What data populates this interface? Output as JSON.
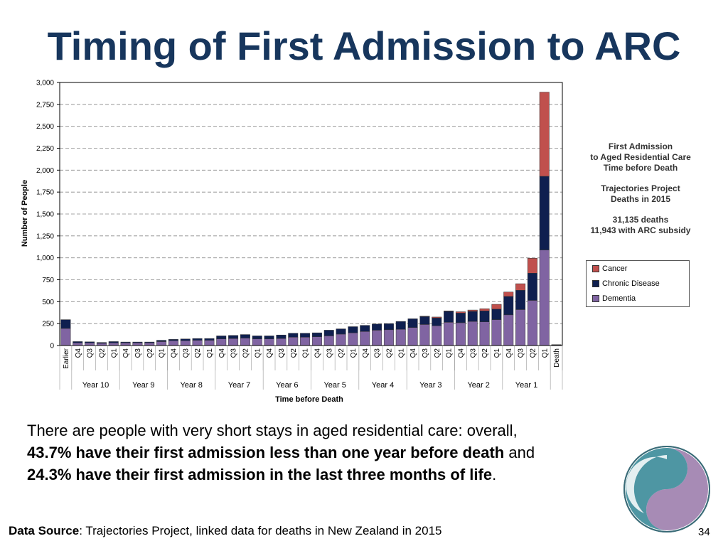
{
  "title": "Timing of First Admission to ARC",
  "info_panel": {
    "lines1": [
      "First Admission",
      "to Aged Residential Care",
      "Time before Death"
    ],
    "lines2": [
      "Trajectories Project",
      "Deaths in 2015"
    ],
    "lines3": [
      "31,135 deaths",
      "11,943 with ARC  subsidy"
    ]
  },
  "legend": [
    {
      "label": "Cancer",
      "color": "#c0504d"
    },
    {
      "label": "Chronic Disease",
      "color": "#0f1f4f"
    },
    {
      "label": "Dementia",
      "color": "#8064a2"
    }
  ],
  "body": {
    "line1": "There are people with very short stays in aged residential care: overall,",
    "line2_bold": "43.7% have their first admission less than one year before death",
    "line2_rest": " and",
    "line3_bold": "24.3% have their first admission in the last three months of life",
    "line3_rest": "."
  },
  "source_label": "Data Source",
  "source_text": ": Trajectories Project, linked data for deaths in New Zealand in 2015",
  "page_number": "34",
  "chart_data": {
    "type": "bar",
    "stacked": true,
    "ylabel": "Number of People",
    "xlabel": "Time before Death",
    "ylim": [
      0,
      3000
    ],
    "yticks": [
      "0",
      "250",
      "500",
      "750",
      "1,000",
      "1,250",
      "1,500",
      "1,750",
      "2,000",
      "2,250",
      "2,500",
      "2,750",
      "3,000"
    ],
    "ytick_values": [
      0,
      250,
      500,
      750,
      1000,
      1250,
      1500,
      1750,
      2000,
      2250,
      2500,
      2750,
      3000
    ],
    "grid": "horizontal dashed",
    "categories": [
      "Earlier",
      "Q4",
      "Q3",
      "Q2",
      "Q1",
      "Q4",
      "Q3",
      "Q2",
      "Q1",
      "Q4",
      "Q3",
      "Q2",
      "Q1",
      "Q4",
      "Q3",
      "Q2",
      "Q1",
      "Q4",
      "Q3",
      "Q2",
      "Q1",
      "Q4",
      "Q3",
      "Q2",
      "Q1",
      "Q4",
      "Q3",
      "Q2",
      "Q1",
      "Q4",
      "Q3",
      "Q2",
      "Q1",
      "Q4",
      "Q3",
      "Q2",
      "Q1",
      "Q4",
      "Q3",
      "Q2",
      "Q1",
      "Death"
    ],
    "groups": [
      {
        "label": "Year 10",
        "start": 1,
        "end": 4
      },
      {
        "label": "Year 9",
        "start": 5,
        "end": 8
      },
      {
        "label": "Year 8",
        "start": 9,
        "end": 12
      },
      {
        "label": "Year 7",
        "start": 13,
        "end": 16
      },
      {
        "label": "Year 6",
        "start": 17,
        "end": 20
      },
      {
        "label": "Year 5",
        "start": 21,
        "end": 24
      },
      {
        "label": "Year 4",
        "start": 25,
        "end": 28
      },
      {
        "label": "Year 3",
        "start": 29,
        "end": 32
      },
      {
        "label": "Year 2",
        "start": 33,
        "end": 36
      },
      {
        "label": "Year 1",
        "start": 37,
        "end": 40
      }
    ],
    "series": [
      {
        "name": "Dementia",
        "color": "#8064a2",
        "values": [
          195,
          30,
          30,
          25,
          30,
          30,
          30,
          30,
          45,
          55,
          55,
          60,
          60,
          75,
          80,
          85,
          75,
          75,
          80,
          95,
          95,
          100,
          110,
          130,
          145,
          160,
          175,
          180,
          185,
          205,
          240,
          225,
          265,
          260,
          275,
          270,
          295,
          350,
          410,
          515,
          1090,
          5
        ]
      },
      {
        "name": "Chronic Disease",
        "color": "#0f1f4f",
        "values": [
          100,
          15,
          12,
          10,
          15,
          10,
          10,
          10,
          15,
          15,
          20,
          20,
          20,
          35,
          35,
          40,
          35,
          35,
          40,
          45,
          45,
          45,
          65,
          60,
          70,
          70,
          70,
          70,
          90,
          100,
          90,
          90,
          125,
          110,
          115,
          125,
          120,
          210,
          220,
          310,
          840,
          5
        ]
      },
      {
        "name": "Cancer",
        "color": "#c0504d",
        "values": [
          0,
          0,
          0,
          0,
          0,
          0,
          0,
          0,
          0,
          0,
          0,
          0,
          0,
          0,
          0,
          0,
          0,
          0,
          0,
          0,
          0,
          0,
          0,
          0,
          0,
          0,
          0,
          0,
          0,
          0,
          5,
          10,
          5,
          15,
          15,
          25,
          55,
          50,
          75,
          170,
          960,
          0
        ]
      }
    ]
  }
}
